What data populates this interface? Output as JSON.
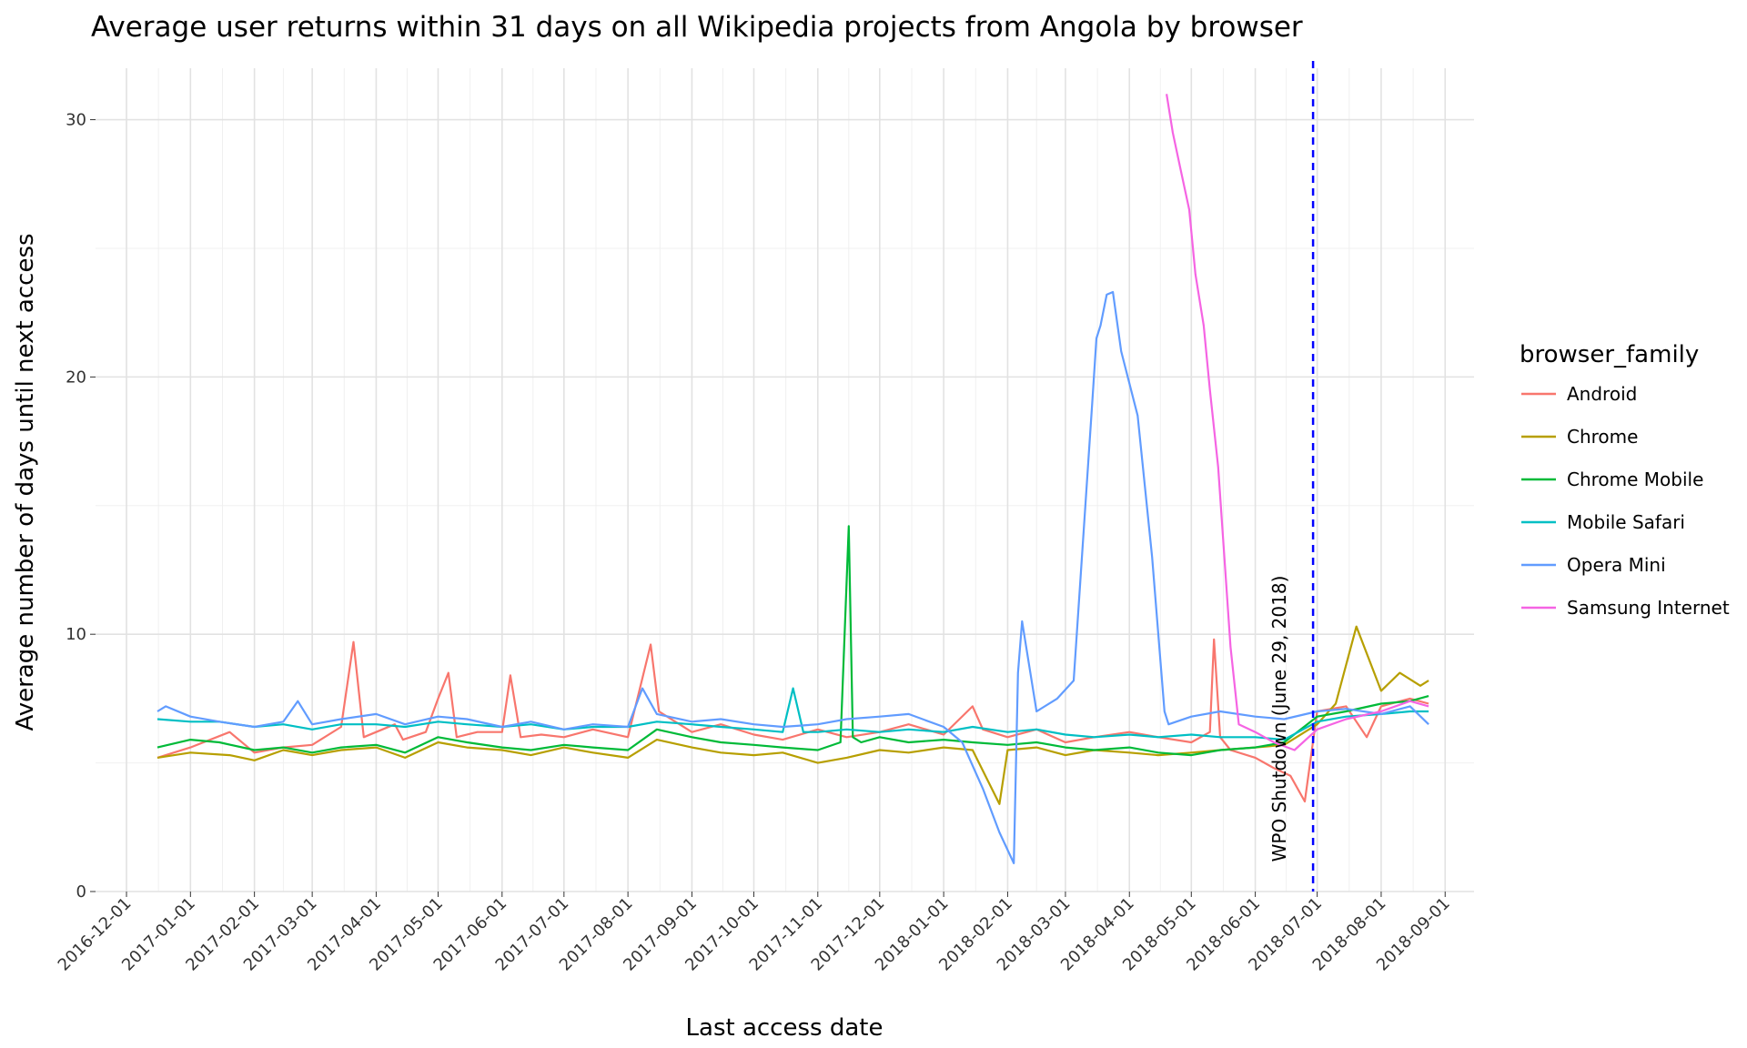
{
  "chart_data": {
    "type": "line",
    "title": "Average user returns within 31 days on all Wikipedia projects from Angola by browser",
    "xlabel": "Last access date",
    "ylabel": "Average number of days until next access",
    "x_type": "date",
    "xlim": [
      "2016-11-16",
      "2018-09-15"
    ],
    "ylim": [
      0,
      32
    ],
    "y_ticks": [
      0,
      10,
      20,
      30
    ],
    "y_tick_labels": [
      "0",
      "10",
      "20",
      "30"
    ],
    "x_ticks": [
      "2016-12-01",
      "2017-01-01",
      "2017-02-01",
      "2017-03-01",
      "2017-04-01",
      "2017-05-01",
      "2017-06-01",
      "2017-07-01",
      "2017-08-01",
      "2017-09-01",
      "2017-10-01",
      "2017-11-01",
      "2017-12-01",
      "2018-01-01",
      "2018-02-01",
      "2018-03-01",
      "2018-04-01",
      "2018-05-01",
      "2018-06-01",
      "2018-07-01",
      "2018-08-01",
      "2018-09-01"
    ],
    "x_tick_labels": [
      "2016-12-01",
      "2017-01-01",
      "2017-02-01",
      "2017-03-01",
      "2017-04-01",
      "2017-05-01",
      "2017-06-01",
      "2017-07-01",
      "2017-08-01",
      "2017-09-01",
      "2017-10-01",
      "2017-11-01",
      "2017-12-01",
      "2018-01-01",
      "2018-02-01",
      "2018-03-01",
      "2018-04-01",
      "2018-05-01",
      "2018-06-01",
      "2018-07-01",
      "2018-08-01",
      "2018-09-01"
    ],
    "grid": true,
    "legend": {
      "title": "browser_family",
      "placement": "right"
    },
    "vline": {
      "x": "2018-06-29",
      "color": "#0000FF",
      "style": "dashed",
      "label": "WPO Shutdown (June 29, 2018)"
    },
    "series": [
      {
        "name": "Android",
        "color": "#F8766D",
        "x": [
          "2016-12-16",
          "2017-01-01",
          "2017-01-20",
          "2017-02-01",
          "2017-02-15",
          "2017-03-01",
          "2017-03-15",
          "2017-03-21",
          "2017-03-26",
          "2017-04-10",
          "2017-04-14",
          "2017-04-25",
          "2017-05-01",
          "2017-05-06",
          "2017-05-10",
          "2017-05-20",
          "2017-06-01",
          "2017-06-05",
          "2017-06-10",
          "2017-06-20",
          "2017-07-01",
          "2017-07-15",
          "2017-08-01",
          "2017-08-12",
          "2017-08-16",
          "2017-08-20",
          "2017-09-01",
          "2017-09-15",
          "2017-10-01",
          "2017-10-15",
          "2017-11-01",
          "2017-11-15",
          "2017-12-01",
          "2017-12-15",
          "2018-01-01",
          "2018-01-15",
          "2018-01-20",
          "2018-02-01",
          "2018-02-15",
          "2018-03-01",
          "2018-03-15",
          "2018-04-01",
          "2018-04-15",
          "2018-05-01",
          "2018-05-10",
          "2018-05-12",
          "2018-05-15",
          "2018-05-20",
          "2018-06-01",
          "2018-06-10",
          "2018-06-18",
          "2018-06-25",
          "2018-07-01",
          "2018-07-15",
          "2018-07-25",
          "2018-08-01",
          "2018-08-15",
          "2018-08-24"
        ],
        "y": [
          5.2,
          5.6,
          6.2,
          5.4,
          5.6,
          5.7,
          6.4,
          9.7,
          6.0,
          6.5,
          5.9,
          6.2,
          7.5,
          8.5,
          6.0,
          6.2,
          6.2,
          8.4,
          6.0,
          6.1,
          6.0,
          6.3,
          6.0,
          9.6,
          7.0,
          6.8,
          6.2,
          6.5,
          6.1,
          5.9,
          6.3,
          6.0,
          6.2,
          6.5,
          6.1,
          7.2,
          6.3,
          6.0,
          6.3,
          5.8,
          6.0,
          6.2,
          6.0,
          5.8,
          6.2,
          9.8,
          6.0,
          5.5,
          5.2,
          4.8,
          4.5,
          3.5,
          7.0,
          7.2,
          6.0,
          7.2,
          7.5,
          7.3
        ]
      },
      {
        "name": "Chrome",
        "color": "#B79F00",
        "x": [
          "2016-12-16",
          "2017-01-01",
          "2017-01-20",
          "2017-02-01",
          "2017-02-15",
          "2017-03-01",
          "2017-03-15",
          "2017-04-01",
          "2017-04-15",
          "2017-05-01",
          "2017-05-15",
          "2017-06-01",
          "2017-06-15",
          "2017-07-01",
          "2017-07-15",
          "2017-08-01",
          "2017-08-15",
          "2017-09-01",
          "2017-09-15",
          "2017-10-01",
          "2017-10-15",
          "2017-11-01",
          "2017-11-15",
          "2017-12-01",
          "2017-12-15",
          "2018-01-01",
          "2018-01-15",
          "2018-01-28",
          "2018-02-01",
          "2018-02-15",
          "2018-03-01",
          "2018-03-15",
          "2018-04-01",
          "2018-04-15",
          "2018-05-01",
          "2018-05-15",
          "2018-06-01",
          "2018-06-15",
          "2018-07-01",
          "2018-07-10",
          "2018-07-20",
          "2018-08-01",
          "2018-08-10",
          "2018-08-20",
          "2018-08-24"
        ],
        "y": [
          5.2,
          5.4,
          5.3,
          5.1,
          5.5,
          5.3,
          5.5,
          5.6,
          5.2,
          5.8,
          5.6,
          5.5,
          5.3,
          5.6,
          5.4,
          5.2,
          5.9,
          5.6,
          5.4,
          5.3,
          5.4,
          5.0,
          5.2,
          5.5,
          5.4,
          5.6,
          5.5,
          3.4,
          5.5,
          5.6,
          5.3,
          5.5,
          5.4,
          5.3,
          5.4,
          5.5,
          5.6,
          5.7,
          6.5,
          7.3,
          10.3,
          7.8,
          8.5,
          8.0,
          8.2
        ]
      },
      {
        "name": "Chrome Mobile",
        "color": "#00BA38",
        "x": [
          "2016-12-16",
          "2017-01-01",
          "2017-01-15",
          "2017-02-01",
          "2017-02-15",
          "2017-03-01",
          "2017-03-15",
          "2017-04-01",
          "2017-04-15",
          "2017-05-01",
          "2017-05-15",
          "2017-06-01",
          "2017-06-15",
          "2017-07-01",
          "2017-07-15",
          "2017-08-01",
          "2017-08-15",
          "2017-09-01",
          "2017-09-15",
          "2017-10-01",
          "2017-10-15",
          "2017-11-01",
          "2017-11-12",
          "2017-11-16",
          "2017-11-18",
          "2017-11-22",
          "2017-12-01",
          "2017-12-15",
          "2018-01-01",
          "2018-01-15",
          "2018-02-01",
          "2018-02-15",
          "2018-03-01",
          "2018-03-15",
          "2018-04-01",
          "2018-04-15",
          "2018-05-01",
          "2018-05-15",
          "2018-06-01",
          "2018-06-15",
          "2018-07-01",
          "2018-07-15",
          "2018-08-01",
          "2018-08-15",
          "2018-08-24"
        ],
        "y": [
          5.6,
          5.9,
          5.8,
          5.5,
          5.6,
          5.4,
          5.6,
          5.7,
          5.4,
          6.0,
          5.8,
          5.6,
          5.5,
          5.7,
          5.6,
          5.5,
          6.3,
          6.0,
          5.8,
          5.7,
          5.6,
          5.5,
          5.8,
          14.2,
          6.0,
          5.8,
          6.0,
          5.8,
          5.9,
          5.8,
          5.7,
          5.8,
          5.6,
          5.5,
          5.6,
          5.4,
          5.3,
          5.5,
          5.6,
          5.8,
          6.8,
          7.0,
          7.3,
          7.4,
          7.6
        ]
      },
      {
        "name": "Mobile Safari",
        "color": "#00BFC4",
        "x": [
          "2016-12-16",
          "2017-01-01",
          "2017-01-15",
          "2017-02-01",
          "2017-02-15",
          "2017-03-01",
          "2017-03-15",
          "2017-04-01",
          "2017-04-15",
          "2017-05-01",
          "2017-05-15",
          "2017-06-01",
          "2017-06-15",
          "2017-07-01",
          "2017-07-15",
          "2017-08-01",
          "2017-08-15",
          "2017-09-01",
          "2017-09-15",
          "2017-10-01",
          "2017-10-15",
          "2017-10-20",
          "2017-10-25",
          "2017-11-01",
          "2017-11-15",
          "2017-12-01",
          "2017-12-15",
          "2018-01-01",
          "2018-01-15",
          "2018-02-01",
          "2018-02-15",
          "2018-03-01",
          "2018-03-15",
          "2018-04-01",
          "2018-04-15",
          "2018-05-01",
          "2018-05-15",
          "2018-06-01",
          "2018-06-15",
          "2018-07-01",
          "2018-07-15",
          "2018-08-01",
          "2018-08-15",
          "2018-08-24"
        ],
        "y": [
          6.7,
          6.6,
          6.6,
          6.4,
          6.5,
          6.3,
          6.5,
          6.5,
          6.4,
          6.6,
          6.5,
          6.4,
          6.5,
          6.3,
          6.4,
          6.4,
          6.6,
          6.5,
          6.4,
          6.3,
          6.2,
          7.9,
          6.2,
          6.2,
          6.3,
          6.2,
          6.3,
          6.2,
          6.4,
          6.2,
          6.3,
          6.1,
          6.0,
          6.1,
          6.0,
          6.1,
          6.0,
          6.0,
          5.9,
          6.6,
          6.8,
          6.9,
          7.0,
          7.0
        ]
      },
      {
        "name": "Opera Mini",
        "color": "#619CFF",
        "x": [
          "2016-12-16",
          "2016-12-20",
          "2017-01-01",
          "2017-01-15",
          "2017-02-01",
          "2017-02-15",
          "2017-02-22",
          "2017-03-01",
          "2017-03-15",
          "2017-04-01",
          "2017-04-15",
          "2017-05-01",
          "2017-05-15",
          "2017-06-01",
          "2017-06-15",
          "2017-07-01",
          "2017-07-15",
          "2017-08-01",
          "2017-08-08",
          "2017-08-15",
          "2017-09-01",
          "2017-09-15",
          "2017-10-01",
          "2017-10-15",
          "2017-11-01",
          "2017-11-15",
          "2017-12-01",
          "2017-12-15",
          "2018-01-01",
          "2018-01-10",
          "2018-01-20",
          "2018-01-28",
          "2018-02-04",
          "2018-02-06",
          "2018-02-08",
          "2018-02-15",
          "2018-02-25",
          "2018-03-05",
          "2018-03-14",
          "2018-03-16",
          "2018-03-18",
          "2018-03-21",
          "2018-03-24",
          "2018-03-28",
          "2018-04-05",
          "2018-04-12",
          "2018-04-18",
          "2018-04-20",
          "2018-05-01",
          "2018-05-15",
          "2018-06-01",
          "2018-06-15",
          "2018-07-01",
          "2018-07-15",
          "2018-08-01",
          "2018-08-15",
          "2018-08-24"
        ],
        "y": [
          7.0,
          7.2,
          6.8,
          6.6,
          6.4,
          6.6,
          7.4,
          6.5,
          6.7,
          6.9,
          6.5,
          6.8,
          6.7,
          6.4,
          6.6,
          6.3,
          6.5,
          6.4,
          7.9,
          6.9,
          6.6,
          6.7,
          6.5,
          6.4,
          6.5,
          6.7,
          6.8,
          6.9,
          6.4,
          5.8,
          4.0,
          2.3,
          1.1,
          8.5,
          10.5,
          7.0,
          7.5,
          8.2,
          19.0,
          21.5,
          22.0,
          23.2,
          23.3,
          21.0,
          18.5,
          13.0,
          7.0,
          6.5,
          6.8,
          7.0,
          6.8,
          6.7,
          7.0,
          7.1,
          6.9,
          7.2,
          6.5
        ]
      },
      {
        "name": "Samsung Internet",
        "color": "#F564E3",
        "x": [
          "2018-04-19",
          "2018-04-22",
          "2018-04-26",
          "2018-04-30",
          "2018-05-03",
          "2018-05-07",
          "2018-05-10",
          "2018-05-14",
          "2018-05-17",
          "2018-05-20",
          "2018-05-24",
          "2018-06-01",
          "2018-06-10",
          "2018-06-20",
          "2018-07-01",
          "2018-07-15",
          "2018-08-01",
          "2018-08-15",
          "2018-08-24"
        ],
        "y": [
          31.0,
          29.5,
          28.0,
          26.5,
          24.0,
          22.0,
          19.5,
          16.5,
          13.0,
          9.5,
          6.5,
          6.2,
          5.8,
          5.5,
          6.3,
          6.7,
          7.0,
          7.4,
          7.2
        ]
      }
    ]
  }
}
